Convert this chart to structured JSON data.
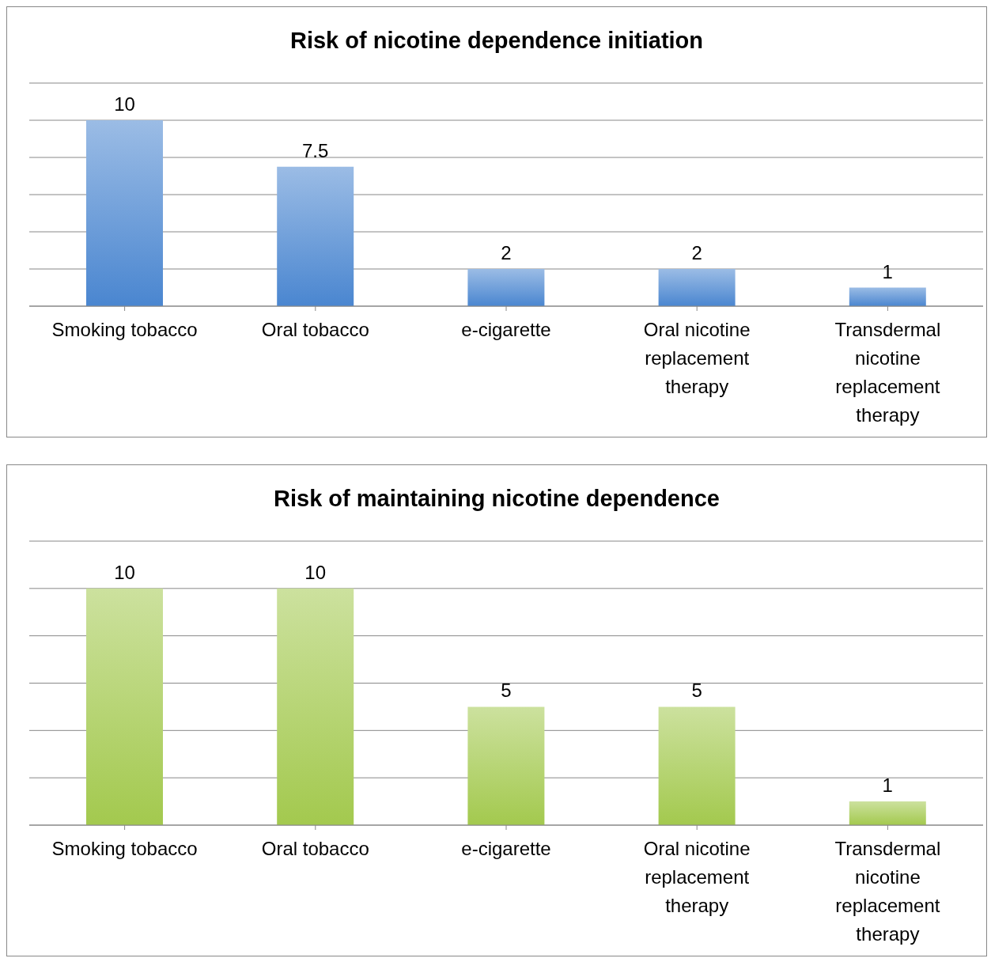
{
  "chart_data": [
    {
      "type": "bar",
      "title": "Risk of nicotine dependence initiation",
      "categories": [
        "Smoking tobacco",
        "Oral tobacco",
        "e-cigarette",
        "Oral nicotine replacement therapy",
        "Transdermal nicotine replacement therapy"
      ],
      "values": [
        10,
        7.5,
        2,
        2,
        1
      ],
      "color": "#4a86d0",
      "grid": "y",
      "data_labels": true
    },
    {
      "type": "bar",
      "title": "Risk of maintaining nicotine dependence",
      "categories": [
        "Smoking tobacco",
        "Oral tobacco",
        "e-cigarette",
        "Oral nicotine replacement therapy",
        "Transdermal nicotine replacement therapy"
      ],
      "values": [
        10,
        10,
        5,
        5,
        1
      ],
      "color": "#a3c94e",
      "grid": "y",
      "data_labels": true
    }
  ]
}
